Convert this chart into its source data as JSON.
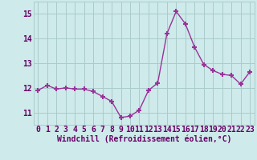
{
  "x": [
    0,
    1,
    2,
    3,
    4,
    5,
    6,
    7,
    8,
    9,
    10,
    11,
    12,
    13,
    14,
    15,
    16,
    17,
    18,
    19,
    20,
    21,
    22,
    23
  ],
  "y": [
    11.9,
    12.1,
    11.95,
    12.0,
    11.95,
    11.95,
    11.85,
    11.65,
    11.45,
    10.8,
    10.85,
    11.1,
    11.9,
    12.2,
    14.2,
    15.1,
    14.6,
    13.65,
    12.95,
    12.7,
    12.55,
    12.5,
    12.15,
    12.65
  ],
  "line_color": "#993399",
  "marker": "+",
  "marker_size": 5,
  "marker_lw": 1.5,
  "bg_color": "#ceeaea",
  "grid_color": "#aacccc",
  "xlabel": "Windchill (Refroidissement éolien,°C)",
  "ylabel_ticks": [
    11,
    12,
    13,
    14,
    15
  ],
  "xtick_labels": [
    "0",
    "1",
    "2",
    "3",
    "4",
    "5",
    "6",
    "7",
    "8",
    "9",
    "10",
    "11",
    "12",
    "13",
    "14",
    "15",
    "16",
    "17",
    "18",
    "19",
    "20",
    "21",
    "22",
    "23"
  ],
  "ylim": [
    10.5,
    15.5
  ],
  "xlim": [
    -0.5,
    23.5
  ],
  "xlabel_fontsize": 7,
  "tick_fontsize": 7,
  "label_color": "#660066"
}
